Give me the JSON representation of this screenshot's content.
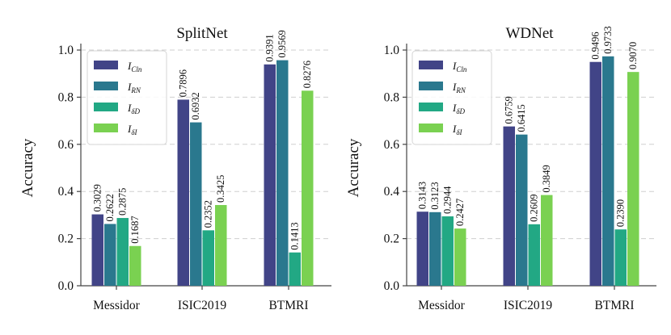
{
  "chart_data": [
    {
      "type": "bar",
      "title": "SplitNet",
      "xlabel": "",
      "ylabel": "Accuracy",
      "ylim": [
        0,
        1.0
      ],
      "yticks": [
        "0.0",
        "0.2",
        "0.4",
        "0.6",
        "0.8",
        "1.0"
      ],
      "grid": true,
      "legend_position": "top-left",
      "categories": [
        "Messidor",
        "ISIC2019",
        "BTMRI"
      ],
      "series": [
        {
          "name": "I_Cln",
          "label_main": "I",
          "label_sub": "Cln",
          "color": "#414487",
          "values": [
            0.3029,
            0.7896,
            0.9391
          ]
        },
        {
          "name": "I_RN",
          "label_main": "I",
          "label_sub": "RN",
          "color": "#2a788e",
          "values": [
            0.2622,
            0.6932,
            0.9569
          ]
        },
        {
          "name": "I_δD",
          "label_main": "I",
          "label_sub": "δD",
          "color": "#22a884",
          "values": [
            0.2875,
            0.2352,
            0.1413
          ]
        },
        {
          "name": "I_δI",
          "label_main": "I",
          "label_sub": "δI",
          "color": "#7ad151",
          "values": [
            0.1687,
            0.3425,
            0.8276
          ]
        }
      ],
      "data_labels": [
        [
          "0.3029",
          "0.7896",
          "0.9391"
        ],
        [
          "0.2622",
          "0.6932",
          "0.9569"
        ],
        [
          "0.2875",
          "0.2352",
          "0.1413"
        ],
        [
          "0.1687",
          "0.3425",
          "0.8276"
        ]
      ]
    },
    {
      "type": "bar",
      "title": "WDNet",
      "xlabel": "",
      "ylabel": "Accuracy",
      "ylim": [
        0,
        1.0
      ],
      "yticks": [
        "0.0",
        "0.2",
        "0.4",
        "0.6",
        "0.8",
        "1.0"
      ],
      "grid": true,
      "legend_position": "top-left",
      "categories": [
        "Messidor",
        "ISIC2019",
        "BTMRI"
      ],
      "series": [
        {
          "name": "I_Cln",
          "label_main": "I",
          "label_sub": "Cln",
          "color": "#414487",
          "values": [
            0.3143,
            0.6759,
            0.9496
          ]
        },
        {
          "name": "I_RN",
          "label_main": "I",
          "label_sub": "RN",
          "color": "#2a788e",
          "values": [
            0.3123,
            0.6415,
            0.9733
          ]
        },
        {
          "name": "I_δD",
          "label_main": "I",
          "label_sub": "δD",
          "color": "#22a884",
          "values": [
            0.2944,
            0.2609,
            0.239
          ]
        },
        {
          "name": "I_δI",
          "label_main": "I",
          "label_sub": "δI",
          "color": "#7ad151",
          "values": [
            0.2427,
            0.3849,
            0.907
          ]
        }
      ],
      "data_labels": [
        [
          "0.3143",
          "0.6759",
          "0.9496"
        ],
        [
          "0.3123",
          "0.6415",
          "0.9733"
        ],
        [
          "0.2944",
          "0.2609",
          "0.2390"
        ],
        [
          "0.2427",
          "0.3849",
          "0.9070"
        ]
      ]
    }
  ]
}
